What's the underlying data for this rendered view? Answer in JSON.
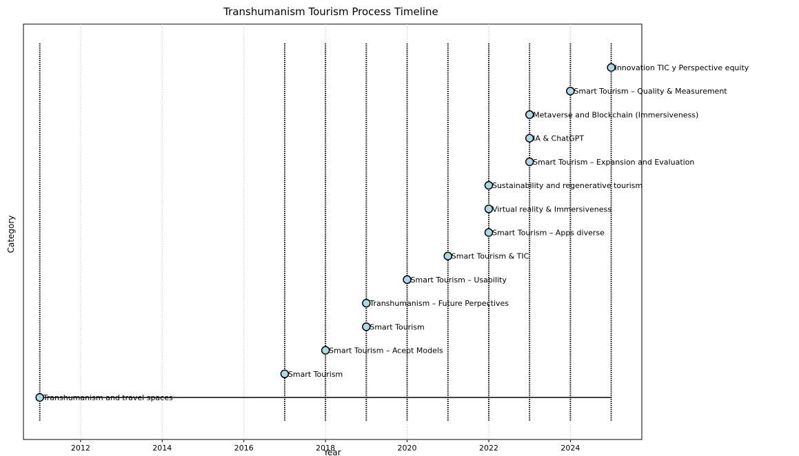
{
  "chart_data": {
    "type": "scatter",
    "title": "Transhumanism Tourism Process Timeline",
    "xlabel": "Year",
    "ylabel": "Category",
    "xlim": [
      2010.6,
      2025.75
    ],
    "x_ticks": [
      2012,
      2014,
      2016,
      2018,
      2020,
      2022,
      2024
    ],
    "vertical_lines": [
      2011,
      2017,
      2018,
      2019,
      2020,
      2021,
      2022,
      2023,
      2024,
      2025
    ],
    "baseline": {
      "from": 2011,
      "to": 2025
    },
    "events": [
      {
        "year": 2011,
        "label": "Transhumanism and travel spaces"
      },
      {
        "year": 2017,
        "label": "Smart Tourism"
      },
      {
        "year": 2018,
        "label": "Smart Tourism – Acept Models"
      },
      {
        "year": 2019,
        "label": "Smart Tourism"
      },
      {
        "year": 2019,
        "label": "Transhumanism – Future Perpectives"
      },
      {
        "year": 2020,
        "label": "Smart Tourism – Usability"
      },
      {
        "year": 2021,
        "label": "Smart Tourism & TIC"
      },
      {
        "year": 2022,
        "label": "Smart Tourism – Apps diverse"
      },
      {
        "year": 2022,
        "label": "Virtual reality & Immersiveness"
      },
      {
        "year": 2022,
        "label": "Sustainability and regenerative tourism"
      },
      {
        "year": 2023,
        "label": "Smart Tourism – Expansion and Evaluation"
      },
      {
        "year": 2023,
        "label": "IA & ChatGPT"
      },
      {
        "year": 2023,
        "label": "Metaverse and Blockchain (Immersiveness)"
      },
      {
        "year": 2024,
        "label": "Smart Tourism – Quality & Measurement"
      },
      {
        "year": 2025,
        "label": "Innovation TIC y Perspective equity"
      }
    ],
    "marker_color": "#add8e6",
    "grid": true
  }
}
